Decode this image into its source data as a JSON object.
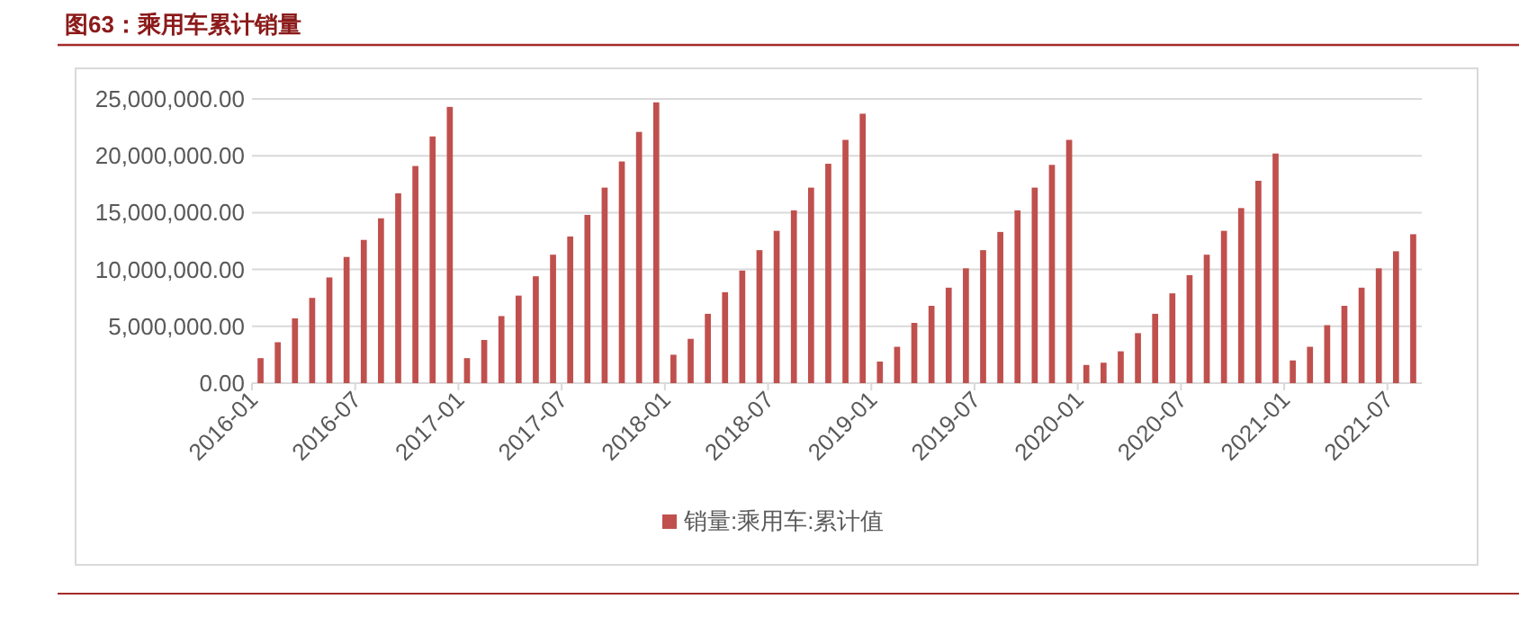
{
  "chart_data": {
    "type": "bar",
    "title": "图63：乘用车累计销量",
    "categories": [
      "2016-01",
      null,
      null,
      null,
      null,
      null,
      "2016-07",
      null,
      null,
      null,
      null,
      null,
      "2017-01",
      null,
      null,
      null,
      null,
      null,
      "2017-07",
      null,
      null,
      null,
      null,
      null,
      "2018-01",
      null,
      null,
      null,
      null,
      null,
      "2018-07",
      null,
      null,
      null,
      null,
      null,
      "2019-01",
      null,
      null,
      null,
      null,
      null,
      "2019-07",
      null,
      null,
      null,
      null,
      null,
      "2020-01",
      null,
      null,
      null,
      null,
      null,
      "2020-07",
      null,
      null,
      null,
      null,
      null,
      "2021-01",
      null,
      null,
      null,
      null,
      null,
      "2021-07",
      null
    ],
    "series": [
      {
        "name": "销量:乘用车:累计值",
        "color": "#c0504d",
        "values": [
          2200000,
          3600000,
          5700000,
          7500000,
          9300000,
          11100000,
          12600000,
          14500000,
          16700000,
          19100000,
          21700000,
          24300000,
          2200000,
          3800000,
          5900000,
          7700000,
          9400000,
          11300000,
          12900000,
          14800000,
          17200000,
          19500000,
          22100000,
          24700000,
          2500000,
          3900000,
          6100000,
          8000000,
          9900000,
          11700000,
          13400000,
          15200000,
          17200000,
          19300000,
          21400000,
          23700000,
          1900000,
          3200000,
          5300000,
          6800000,
          8400000,
          10100000,
          11700000,
          13300000,
          15200000,
          17200000,
          19200000,
          21400000,
          1600000,
          1800000,
          2800000,
          4400000,
          6100000,
          7900000,
          9500000,
          11300000,
          13400000,
          15400000,
          17800000,
          20200000,
          2000000,
          3200000,
          5100000,
          6800000,
          8400000,
          10100000,
          11600000,
          13100000
        ]
      }
    ],
    "ylim": [
      0,
      25000000
    ],
    "yticks": [
      {
        "value": 0,
        "label": "0.00"
      },
      {
        "value": 5000000,
        "label": "5,000,000.00"
      },
      {
        "value": 10000000,
        "label": "10,000,000.00"
      },
      {
        "value": 15000000,
        "label": "15,000,000.00"
      },
      {
        "value": 20000000,
        "label": "20,000,000.00"
      },
      {
        "value": 25000000,
        "label": "25,000,000.00"
      }
    ],
    "grid": "y",
    "legend": "bottom"
  }
}
